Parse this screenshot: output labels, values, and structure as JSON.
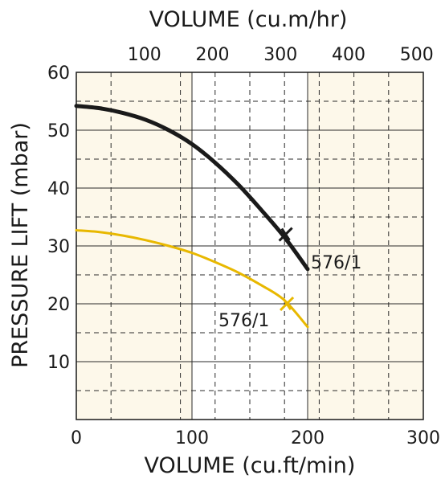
{
  "chart_data": {
    "type": "line",
    "xlabel": "VOLUME (cu.ft/min)",
    "x2label": "VOLUME (cu.m/hr)",
    "ylabel": "PRESSURE LIFT (mbar)",
    "xlim": [
      0,
      300
    ],
    "x2lim": [
      0,
      509.7
    ],
    "ylim": [
      0,
      60
    ],
    "x_ticks": [
      "0",
      "100",
      "200",
      "300"
    ],
    "x2_ticks": [
      "100",
      "200",
      "300",
      "400",
      "500"
    ],
    "y_ticks": [
      "10",
      "20",
      "30",
      "40",
      "50",
      "60"
    ],
    "grid": true,
    "colors": {
      "band": "#fdf8ea",
      "grid": "#2a2a2a",
      "black_series": "#1a1a1a",
      "yellow_series": "#e8b800"
    },
    "series": [
      {
        "name": "576/1",
        "color": "#1a1a1a",
        "x": [
          0,
          20,
          40,
          60,
          80,
          100,
          120,
          140,
          160,
          180,
          200
        ],
        "y": [
          54.2,
          53.8,
          53.0,
          51.8,
          50.0,
          47.6,
          44.4,
          40.6,
          36.2,
          31.5,
          26.0
        ],
        "marker_x": 181,
        "marker_y": 32
      },
      {
        "name": "576/1",
        "color": "#e8b800",
        "x": [
          0,
          20,
          40,
          60,
          80,
          100,
          120,
          140,
          160,
          180,
          200
        ],
        "y": [
          32.7,
          32.4,
          31.8,
          31.0,
          30.0,
          28.8,
          27.2,
          25.4,
          23.2,
          20.6,
          16.0
        ],
        "marker_x": 182,
        "marker_y": 20
      }
    ]
  }
}
